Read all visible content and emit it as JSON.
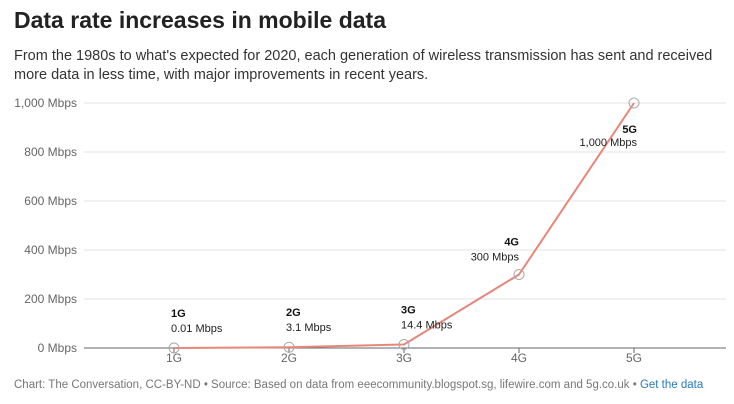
{
  "title": "Data rate increases in mobile data",
  "subtitle": "From the 1980s to what's expected for 2020, each generation of wireless transmission has sent and received more data in less time, with major improvements in recent years.",
  "footer": {
    "source": "Chart: The Conversation, CC-BY-ND • Source: Based on data from eeecommunity.blogspot.sg, lifewire.com and 5g.co.uk • ",
    "link_label": "Get the data"
  },
  "colors": {
    "line": "#e8867a",
    "grid": "#e3e3e3",
    "axis": "#666666",
    "marker": "#aaaaaa"
  },
  "chart_data": {
    "type": "line",
    "categories": [
      "1G",
      "2G",
      "3G",
      "4G",
      "5G"
    ],
    "values": [
      0.01,
      3.1,
      14.4,
      300,
      1000
    ],
    "y_ticks": [
      0,
      200,
      400,
      600,
      800,
      1000
    ],
    "y_tick_labels": [
      "0 Mbps",
      "200 Mbps",
      "400 Mbps",
      "600 Mbps",
      "800 Mbps",
      "1,000 Mbps"
    ],
    "ylim": [
      0,
      1000
    ],
    "grid": true,
    "annotations": [
      {
        "name": "1G",
        "value": "0.01 Mbps"
      },
      {
        "name": "2G",
        "value": "3.1 Mbps"
      },
      {
        "name": "3G",
        "value": "14.4 Mbps"
      },
      {
        "name": "4G",
        "value": "300 Mbps"
      },
      {
        "name": "5G",
        "value": "1,000 Mbps"
      }
    ]
  }
}
